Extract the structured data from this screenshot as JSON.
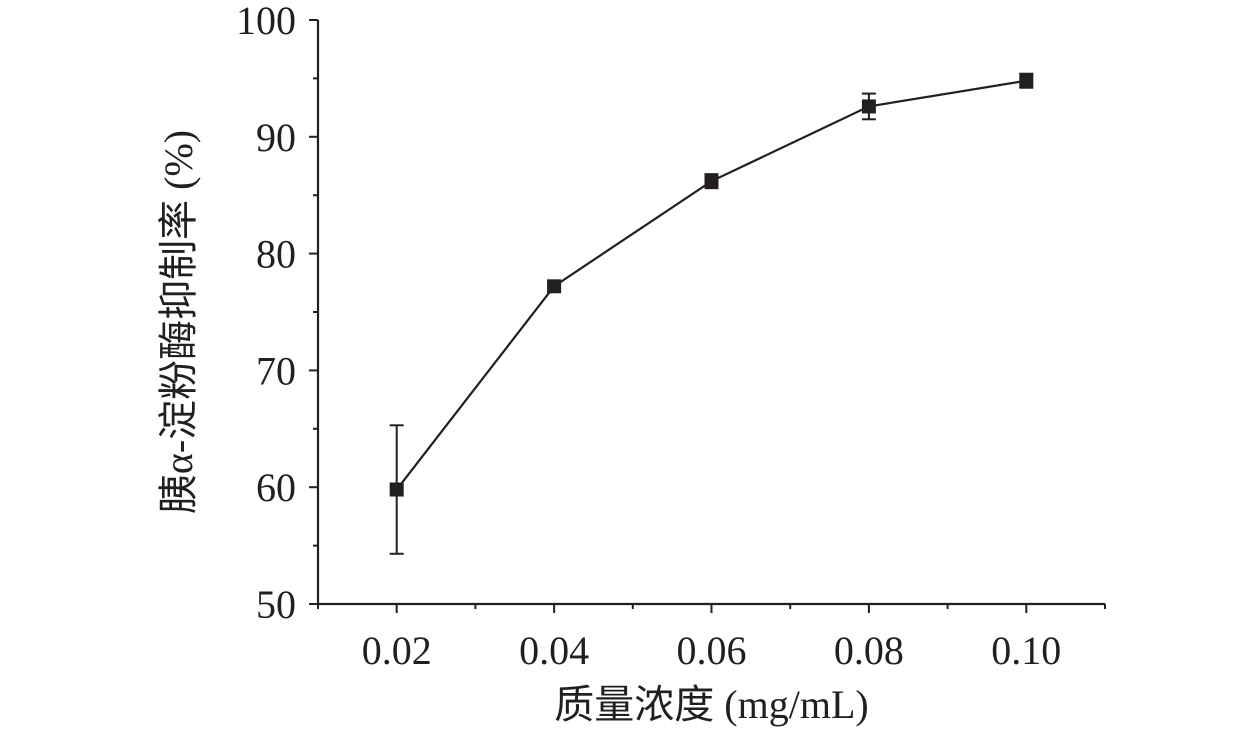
{
  "chart_data": {
    "type": "line",
    "xlabel": "质量浓度 (mg/mL)",
    "ylabel": "胰α-淀粉酶抑制率 (%)",
    "x": [
      0.02,
      0.04,
      0.06,
      0.08,
      0.1
    ],
    "xticks": [
      0.02,
      0.04,
      0.06,
      0.08,
      0.1
    ],
    "xtick_labels": [
      "0.02",
      "0.04",
      "0.06",
      "0.08",
      "0.10"
    ],
    "xlim": [
      0.01,
      0.11
    ],
    "yticks": [
      50,
      60,
      70,
      80,
      90,
      100
    ],
    "ytick_labels": [
      "50",
      "60",
      "70",
      "80",
      "90",
      "100"
    ],
    "ylim": [
      50,
      100
    ],
    "grid": false,
    "series": [
      {
        "values": [
          59.8,
          77.2,
          86.2,
          92.6,
          94.8
        ],
        "error": [
          5.5,
          0.3,
          0.6,
          1.1,
          0.6
        ],
        "marker": "square",
        "color": "#231f20"
      }
    ]
  }
}
